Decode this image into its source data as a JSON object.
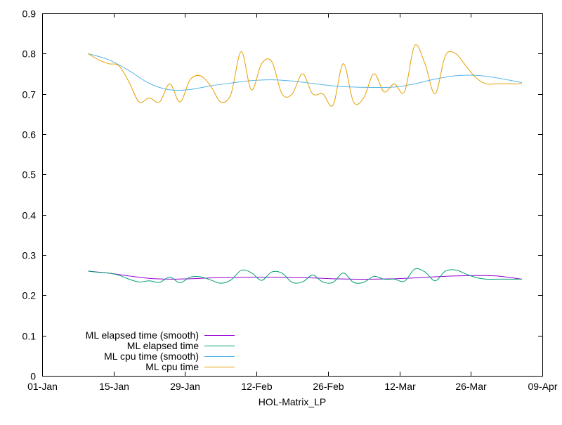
{
  "chart_data": {
    "type": "line",
    "title": "",
    "xlabel": "HOL-Matrix_LP",
    "ylabel": "",
    "x_ticks": [
      "01-Jan",
      "15-Jan",
      "29-Jan",
      "12-Feb",
      "26-Feb",
      "12-Mar",
      "26-Mar",
      "09-Apr"
    ],
    "y_ticks": [
      "0",
      "0.1",
      "0.2",
      "0.3",
      "0.4",
      "0.5",
      "0.6",
      "0.7",
      "0.8",
      "0.9"
    ],
    "xlim_day_of_year": [
      1,
      99
    ],
    "ylim": [
      0,
      0.9
    ],
    "grid": false,
    "legend_position": "bottom-left",
    "series": [
      {
        "name": "ML elapsed time (smooth)",
        "color": "#9400d3",
        "x": [
          10,
          14,
          18,
          22,
          26,
          30,
          34,
          38,
          42,
          46,
          50,
          54,
          58,
          62,
          66,
          70,
          74,
          78,
          82,
          86,
          90,
          95
        ],
        "y": [
          0.26,
          0.255,
          0.248,
          0.242,
          0.24,
          0.241,
          0.243,
          0.244,
          0.245,
          0.245,
          0.244,
          0.243,
          0.241,
          0.24,
          0.24,
          0.241,
          0.243,
          0.246,
          0.248,
          0.249,
          0.248,
          0.24
        ]
      },
      {
        "name": "ML elapsed time",
        "color": "#009e73",
        "x": [
          10,
          12,
          14,
          16,
          18,
          20,
          22,
          24,
          26,
          28,
          30,
          32,
          34,
          36,
          38,
          40,
          42,
          44,
          46,
          48,
          50,
          52,
          54,
          56,
          58,
          60,
          62,
          64,
          66,
          68,
          70,
          72,
          74,
          76,
          78,
          80,
          82,
          84,
          86,
          88,
          90,
          92,
          95
        ],
        "y": [
          0.26,
          0.257,
          0.255,
          0.25,
          0.24,
          0.233,
          0.236,
          0.232,
          0.245,
          0.231,
          0.245,
          0.246,
          0.238,
          0.23,
          0.238,
          0.262,
          0.256,
          0.237,
          0.258,
          0.255,
          0.232,
          0.233,
          0.25,
          0.233,
          0.232,
          0.255,
          0.232,
          0.232,
          0.247,
          0.24,
          0.24,
          0.235,
          0.265,
          0.258,
          0.236,
          0.26,
          0.263,
          0.253,
          0.244,
          0.24,
          0.24,
          0.24,
          0.24
        ]
      },
      {
        "name": "ML cpu time (smooth)",
        "color": "#56b4e9",
        "x": [
          10,
          14,
          18,
          22,
          26,
          30,
          34,
          38,
          42,
          46,
          50,
          54,
          58,
          62,
          66,
          70,
          74,
          78,
          82,
          86,
          90,
          95
        ],
        "y": [
          0.8,
          0.785,
          0.758,
          0.726,
          0.71,
          0.711,
          0.72,
          0.727,
          0.733,
          0.735,
          0.732,
          0.726,
          0.72,
          0.717,
          0.716,
          0.717,
          0.725,
          0.737,
          0.745,
          0.746,
          0.74,
          0.728
        ]
      },
      {
        "name": "ML cpu time",
        "color": "#e69f00",
        "x": [
          10,
          12,
          14,
          16,
          18,
          20,
          22,
          24,
          26,
          28,
          30,
          32,
          34,
          36,
          38,
          40,
          42,
          44,
          46,
          48,
          50,
          52,
          54,
          56,
          58,
          60,
          62,
          64,
          66,
          68,
          70,
          72,
          74,
          76,
          78,
          80,
          82,
          84,
          86,
          88,
          90,
          92,
          95
        ],
        "y": [
          0.8,
          0.785,
          0.775,
          0.77,
          0.73,
          0.68,
          0.69,
          0.68,
          0.725,
          0.68,
          0.735,
          0.745,
          0.72,
          0.68,
          0.7,
          0.805,
          0.71,
          0.775,
          0.78,
          0.7,
          0.7,
          0.75,
          0.7,
          0.7,
          0.672,
          0.775,
          0.68,
          0.69,
          0.75,
          0.705,
          0.725,
          0.705,
          0.82,
          0.775,
          0.7,
          0.795,
          0.8,
          0.77,
          0.74,
          0.725,
          0.725,
          0.725,
          0.725
        ]
      }
    ]
  }
}
